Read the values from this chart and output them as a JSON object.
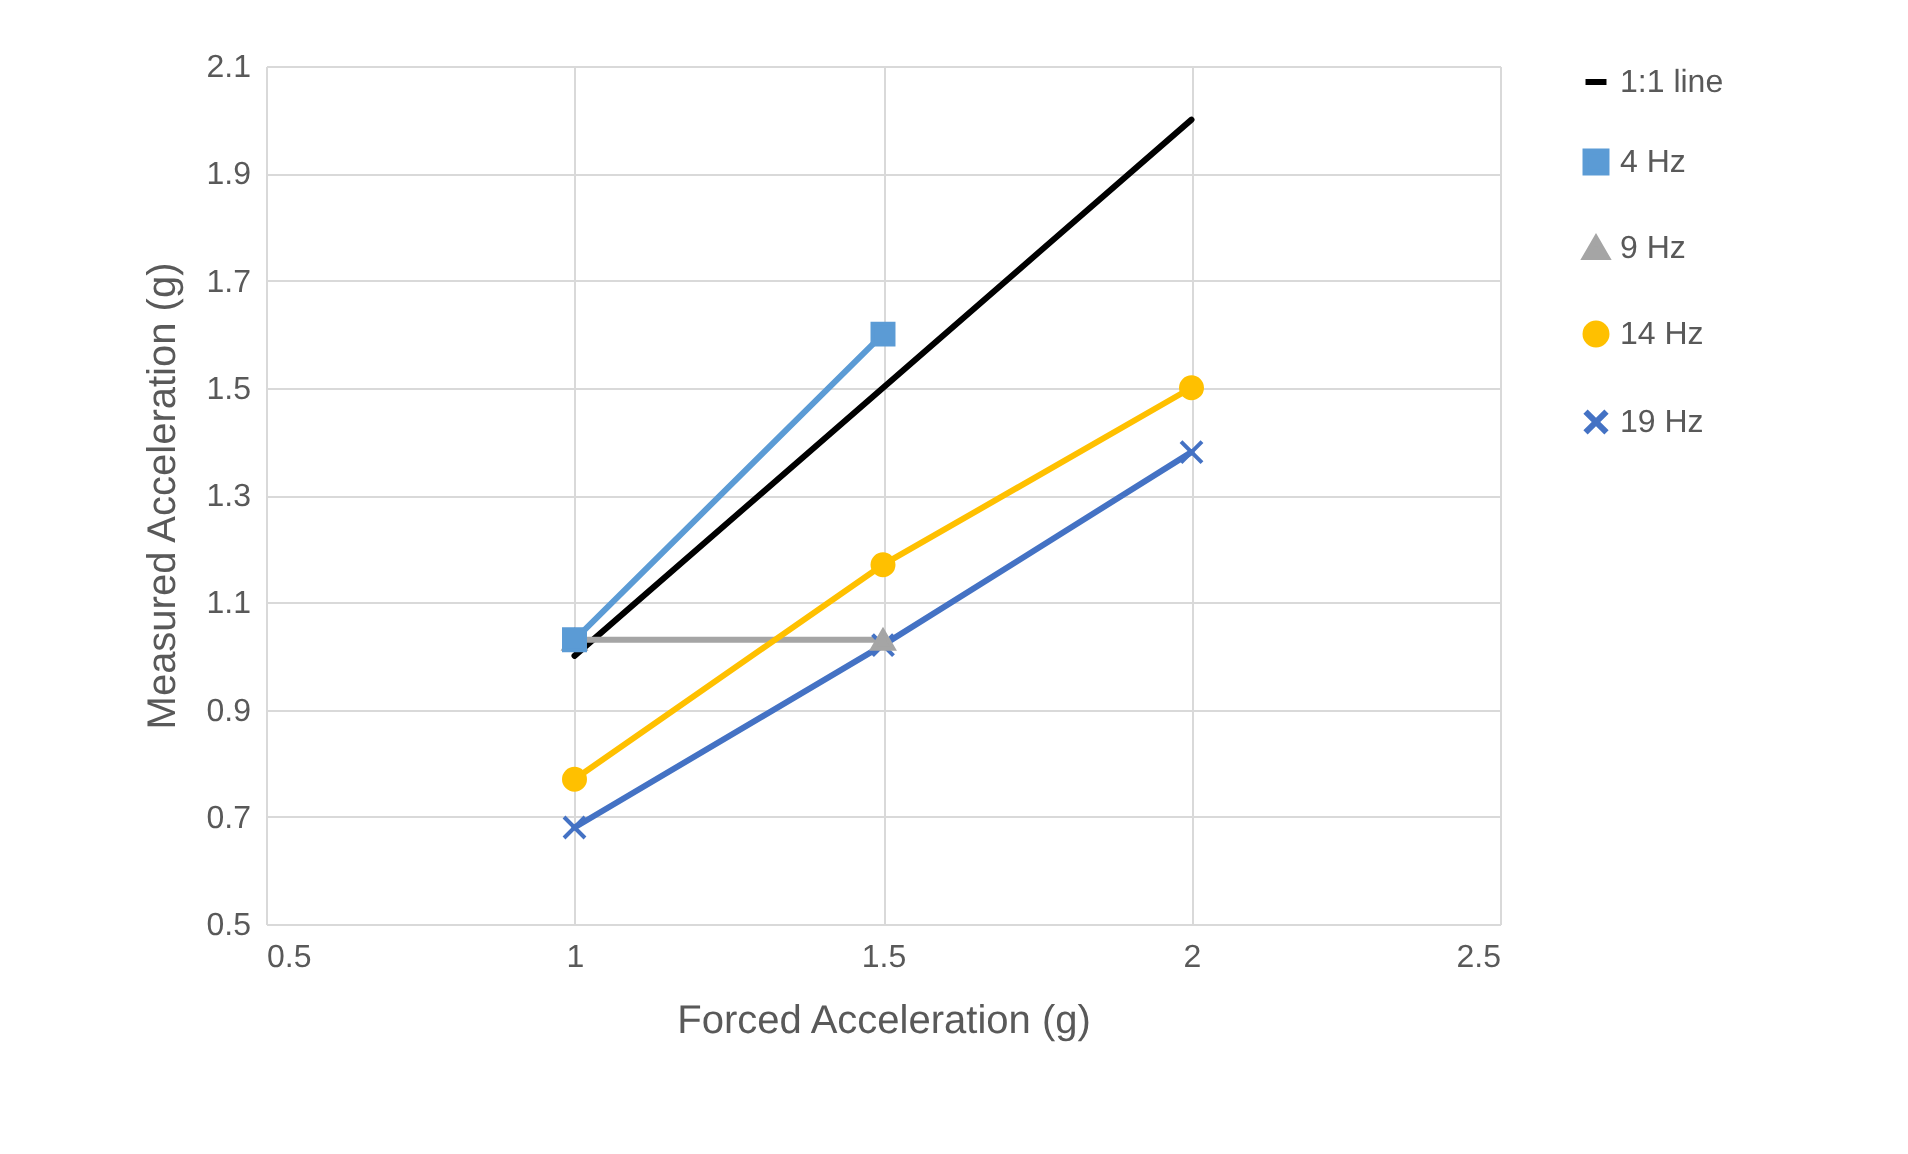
{
  "chart_data": {
    "type": "line",
    "xlabel": "Forced Acceleration (g)",
    "ylabel": "Measured Acceleration (g)",
    "xlim": [
      0.5,
      2.5
    ],
    "xticks": [
      0.5,
      {
        "value": 1,
        "label": "1"
      },
      1.5,
      {
        "value": 2,
        "label": "2"
      },
      2.5
    ],
    "ylim": [
      0.5,
      2.1
    ],
    "yticks": [
      0.5,
      0.7,
      0.9,
      1.1,
      1.3,
      1.5,
      1.7,
      1.9,
      2.1
    ],
    "grid": true,
    "legend": "right",
    "series": [
      {
        "name": "1:1 line",
        "color": "#000000",
        "x": [
          1,
          2
        ],
        "values": [
          1,
          2
        ],
        "marker": "none"
      },
      {
        "name": "4 Hz",
        "color": "#5b9bd5",
        "x": [
          1,
          1.5
        ],
        "values": [
          1.03,
          1.6
        ],
        "marker": "square"
      },
      {
        "name": "9 Hz",
        "color": "#a5a5a5",
        "x": [
          1,
          1.5
        ],
        "values": [
          1.03,
          1.03
        ],
        "marker": "triangle"
      },
      {
        "name": "14 Hz",
        "color": "#ffc000",
        "x": [
          1,
          1.5,
          2
        ],
        "values": [
          0.77,
          1.17,
          1.5
        ],
        "marker": "circle"
      },
      {
        "name": "19 Hz",
        "color": "#4472c4",
        "x": [
          1,
          1.5,
          2
        ],
        "values": [
          0.68,
          1.02,
          1.38
        ],
        "marker": "cross"
      }
    ]
  }
}
